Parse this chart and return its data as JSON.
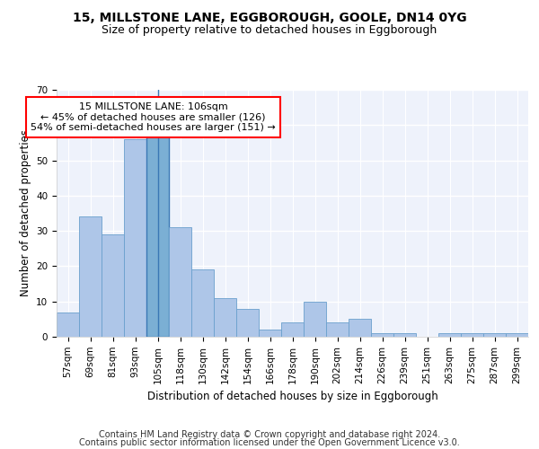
{
  "title_line1": "15, MILLSTONE LANE, EGGBOROUGH, GOOLE, DN14 0YG",
  "title_line2": "Size of property relative to detached houses in Eggborough",
  "xlabel": "Distribution of detached houses by size in Eggborough",
  "ylabel": "Number of detached properties",
  "footnote1": "Contains HM Land Registry data © Crown copyright and database right 2024.",
  "footnote2": "Contains public sector information licensed under the Open Government Licence v3.0.",
  "bar_labels": [
    "57sqm",
    "69sqm",
    "81sqm",
    "93sqm",
    "105sqm",
    "118sqm",
    "130sqm",
    "142sqm",
    "154sqm",
    "166sqm",
    "178sqm",
    "190sqm",
    "202sqm",
    "214sqm",
    "226sqm",
    "239sqm",
    "251sqm",
    "263sqm",
    "275sqm",
    "287sqm",
    "299sqm"
  ],
  "bar_values": [
    7,
    34,
    29,
    56,
    57,
    31,
    19,
    11,
    8,
    2,
    4,
    10,
    4,
    5,
    1,
    1,
    0,
    1,
    1,
    1,
    1
  ],
  "bar_color": "#aec6e8",
  "bar_edge_color": "#6aa0cd",
  "highlight_bar_index": 4,
  "highlight_color": "#7bafd4",
  "highlight_edge_color": "#3a78b5",
  "annotation_text": "15 MILLSTONE LANE: 106sqm\n← 45% of detached houses are smaller (126)\n54% of semi-detached houses are larger (151) →",
  "annotation_box_color": "white",
  "annotation_box_edge_color": "red",
  "ylim": [
    0,
    70
  ],
  "yticks": [
    0,
    10,
    20,
    30,
    40,
    50,
    60,
    70
  ],
  "background_color": "#eef2fb",
  "grid_color": "white",
  "title_fontsize": 10,
  "subtitle_fontsize": 9,
  "axis_label_fontsize": 8.5,
  "tick_fontsize": 7.5,
  "annotation_fontsize": 8,
  "footnote_fontsize": 7
}
